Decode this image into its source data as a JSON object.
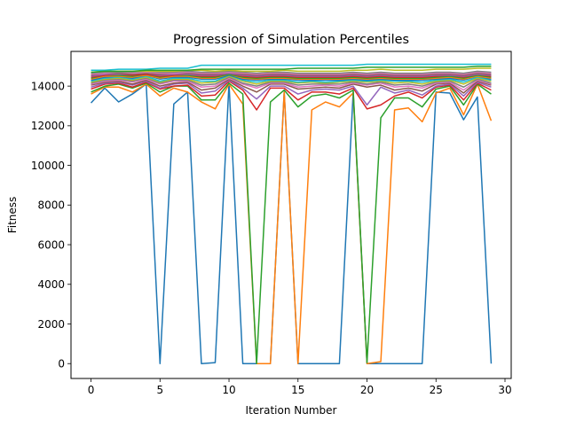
{
  "chart_data": {
    "type": "line",
    "title": "Progression of Simulation Percentiles",
    "xlabel": "Iteration Number",
    "ylabel": "Fitness",
    "xlim": [
      -1.45,
      30.45
    ],
    "ylim": [
      -750,
      15750
    ],
    "xticks": [
      0,
      5,
      10,
      15,
      20,
      25,
      30
    ],
    "yticks": [
      0,
      2000,
      4000,
      6000,
      8000,
      10000,
      12000,
      14000
    ],
    "x": [
      0,
      1,
      2,
      3,
      4,
      5,
      6,
      7,
      8,
      9,
      10,
      11,
      12,
      13,
      14,
      15,
      16,
      17,
      18,
      19,
      20,
      21,
      22,
      23,
      24,
      25,
      26,
      27,
      28,
      29
    ],
    "grid": false,
    "legend": "none",
    "series": [
      {
        "color": "#1f77b4",
        "values": [
          13150,
          13900,
          13200,
          13600,
          14100,
          0,
          13100,
          13700,
          0,
          50,
          14150,
          0,
          0,
          0,
          13700,
          0,
          0,
          0,
          0,
          13700,
          0,
          0,
          0,
          0,
          0,
          13700,
          13650,
          12300,
          13450,
          0
        ]
      },
      {
        "color": "#ff7f0e",
        "values": [
          13600,
          13950,
          13950,
          13700,
          14100,
          13500,
          13900,
          13700,
          13200,
          12850,
          14100,
          13100,
          0,
          0,
          13700,
          0,
          12800,
          13200,
          12950,
          13650,
          0,
          100,
          12800,
          12900,
          12200,
          13650,
          13900,
          12550,
          14100,
          12250
        ]
      },
      {
        "color": "#2ca02c",
        "values": [
          13700,
          14000,
          14100,
          13900,
          14150,
          13700,
          14000,
          14000,
          13300,
          13300,
          14150,
          13600,
          0,
          13200,
          13800,
          12950,
          13500,
          13600,
          13400,
          13800,
          50,
          12400,
          13400,
          13400,
          12950,
          13850,
          14000,
          13050,
          14100,
          13600
        ]
      },
      {
        "color": "#d62728",
        "values": [
          13850,
          14100,
          14150,
          13950,
          14200,
          13850,
          14000,
          14050,
          13500,
          13550,
          14250,
          13800,
          12800,
          13900,
          13900,
          13300,
          13700,
          13700,
          13600,
          13900,
          12850,
          13050,
          13500,
          13700,
          13400,
          13950,
          14050,
          13300,
          14150,
          13800
        ]
      },
      {
        "color": "#9467bd",
        "values": [
          13950,
          14150,
          14200,
          14050,
          14250,
          13900,
          14100,
          14150,
          13650,
          13750,
          14300,
          13900,
          13350,
          14000,
          14000,
          13600,
          13800,
          13850,
          13800,
          14000,
          13050,
          13950,
          13650,
          13800,
          13550,
          14000,
          14100,
          13500,
          14200,
          13950
        ]
      },
      {
        "color": "#8c564b",
        "values": [
          14050,
          14200,
          14250,
          14100,
          14300,
          14000,
          14150,
          14200,
          13800,
          13900,
          14350,
          14000,
          13700,
          14100,
          14100,
          13850,
          13900,
          13950,
          13900,
          14100,
          13950,
          14050,
          13800,
          13900,
          13750,
          14100,
          14150,
          13650,
          14250,
          14050
        ]
      },
      {
        "color": "#e377c2",
        "values": [
          14100,
          14250,
          14300,
          14200,
          14350,
          14100,
          14250,
          14250,
          13950,
          14000,
          14400,
          14100,
          13900,
          14150,
          14150,
          13950,
          14000,
          14050,
          14000,
          14150,
          14050,
          14150,
          13950,
          14000,
          13900,
          14150,
          14200,
          13800,
          14300,
          14100
        ]
      },
      {
        "color": "#7f7f7f",
        "values": [
          14150,
          14300,
          14350,
          14250,
          14400,
          14150,
          14300,
          14300,
          14050,
          14100,
          14450,
          14150,
          14000,
          14200,
          14200,
          14050,
          14100,
          14100,
          14100,
          14200,
          14100,
          14200,
          14050,
          14100,
          14000,
          14200,
          14250,
          13950,
          14350,
          14150
        ]
      },
      {
        "color": "#bcbd22",
        "values": [
          14200,
          14350,
          14400,
          14300,
          14450,
          14200,
          14350,
          14350,
          14150,
          14200,
          14500,
          14250,
          14100,
          14250,
          14250,
          14150,
          14200,
          14150,
          14200,
          14250,
          14200,
          14250,
          14150,
          14200,
          14100,
          14250,
          14300,
          14100,
          14400,
          14250
        ]
      },
      {
        "color": "#17becf",
        "values": [
          14250,
          14400,
          14450,
          14350,
          14500,
          14250,
          14400,
          14400,
          14250,
          14250,
          14550,
          14300,
          14200,
          14300,
          14300,
          14200,
          14250,
          14200,
          14250,
          14300,
          14250,
          14300,
          14250,
          14250,
          14200,
          14300,
          14350,
          14200,
          14450,
          14300
        ]
      },
      {
        "color": "#1f77b4",
        "values": [
          14300,
          14450,
          14500,
          14400,
          14550,
          14350,
          14450,
          14450,
          14350,
          14350,
          14550,
          14350,
          14300,
          14350,
          14350,
          14300,
          14300,
          14300,
          14300,
          14350,
          14300,
          14350,
          14300,
          14300,
          14300,
          14350,
          14400,
          14300,
          14500,
          14350
        ]
      },
      {
        "color": "#ff7f0e",
        "values": [
          14350,
          14500,
          14500,
          14450,
          14550,
          14400,
          14500,
          14500,
          14400,
          14400,
          14600,
          14400,
          14350,
          14400,
          14400,
          14350,
          14350,
          14350,
          14350,
          14400,
          14350,
          14400,
          14350,
          14350,
          14350,
          14400,
          14450,
          14350,
          14500,
          14400
        ]
      },
      {
        "color": "#2ca02c",
        "values": [
          14400,
          14550,
          14550,
          14500,
          14600,
          14450,
          14550,
          14550,
          14450,
          14450,
          14600,
          14450,
          14400,
          14450,
          14450,
          14400,
          14400,
          14400,
          14400,
          14450,
          14400,
          14450,
          14400,
          14400,
          14400,
          14450,
          14500,
          14400,
          14550,
          14450
        ]
      },
      {
        "color": "#d62728",
        "values": [
          14450,
          14550,
          14600,
          14550,
          14600,
          14500,
          14550,
          14600,
          14500,
          14500,
          14650,
          14500,
          14450,
          14500,
          14500,
          14450,
          14450,
          14450,
          14450,
          14500,
          14450,
          14500,
          14450,
          14450,
          14450,
          14500,
          14550,
          14450,
          14600,
          14500
        ]
      },
      {
        "color": "#9467bd",
        "values": [
          14500,
          14600,
          14600,
          14600,
          14650,
          14550,
          14600,
          14600,
          14550,
          14550,
          14650,
          14550,
          14500,
          14550,
          14550,
          14500,
          14500,
          14500,
          14500,
          14550,
          14500,
          14550,
          14500,
          14500,
          14500,
          14550,
          14550,
          14500,
          14600,
          14550
        ]
      },
      {
        "color": "#8c564b",
        "values": [
          14550,
          14650,
          14650,
          14600,
          14650,
          14600,
          14650,
          14650,
          14600,
          14600,
          14700,
          14600,
          14550,
          14600,
          14600,
          14550,
          14550,
          14550,
          14550,
          14600,
          14550,
          14600,
          14550,
          14550,
          14550,
          14600,
          14600,
          14550,
          14650,
          14600
        ]
      },
      {
        "color": "#e377c2",
        "values": [
          14600,
          14650,
          14700,
          14650,
          14700,
          14650,
          14650,
          14700,
          14650,
          14650,
          14700,
          14650,
          14600,
          14650,
          14650,
          14600,
          14600,
          14600,
          14600,
          14650,
          14600,
          14650,
          14600,
          14600,
          14600,
          14650,
          14650,
          14600,
          14700,
          14650
        ]
      },
      {
        "color": "#7f7f7f",
        "values": [
          14650,
          14700,
          14700,
          14700,
          14750,
          14700,
          14700,
          14750,
          14700,
          14700,
          14750,
          14700,
          14650,
          14700,
          14700,
          14650,
          14650,
          14650,
          14650,
          14700,
          14650,
          14700,
          14650,
          14650,
          14650,
          14700,
          14700,
          14650,
          14750,
          14700
        ]
      },
      {
        "color": "#bcbd22",
        "values": [
          14700,
          14750,
          14750,
          14750,
          14750,
          14750,
          14750,
          14800,
          14800,
          14750,
          14800,
          14750,
          14750,
          14750,
          14800,
          14750,
          14750,
          14750,
          14750,
          14800,
          14800,
          14850,
          14800,
          14800,
          14800,
          14850,
          14850,
          14850,
          14900,
          14900
        ]
      },
      {
        "color": "#17becf",
        "values": [
          14800,
          14800,
          14850,
          14850,
          14850,
          14900,
          14900,
          14900,
          15050,
          15050,
          15050,
          15050,
          15050,
          15050,
          15050,
          15050,
          15050,
          15050,
          15050,
          15050,
          15100,
          15100,
          15100,
          15100,
          15100,
          15100,
          15100,
          15100,
          15100,
          15100
        ]
      },
      {
        "color": "#2ca02c",
        "values": [
          14700,
          14750,
          14750,
          14750,
          14800,
          14800,
          14800,
          14800,
          14850,
          14850,
          14850,
          14850,
          14850,
          14850,
          14850,
          14900,
          14900,
          14900,
          14900,
          14900,
          14950,
          14950,
          14950,
          14950,
          14950,
          14950,
          14950,
          14950,
          15000,
          15000
        ]
      }
    ]
  }
}
